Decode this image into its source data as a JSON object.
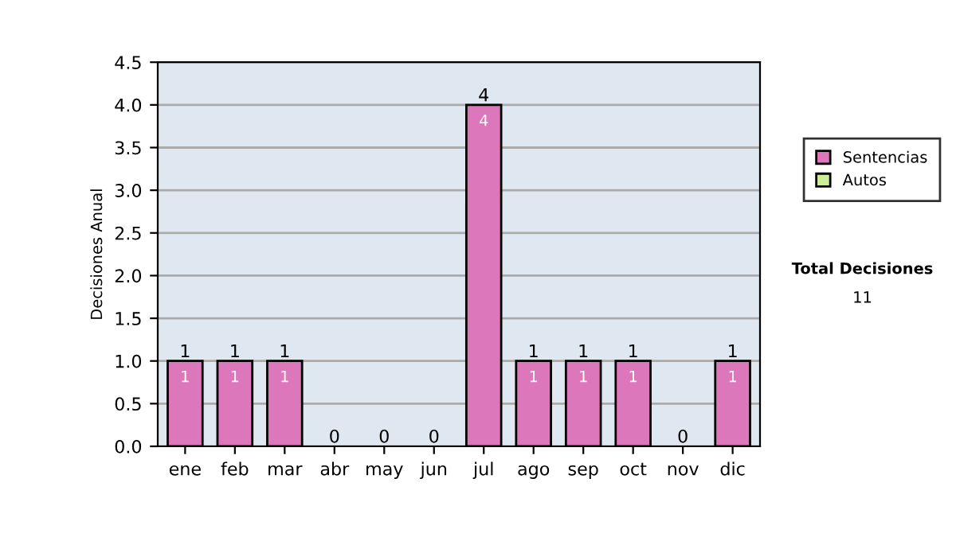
{
  "chart_data": {
    "type": "bar",
    "stacked": true,
    "ylabel": "Decisiones Anual",
    "categories": [
      "ene",
      "feb",
      "mar",
      "abr",
      "may",
      "jun",
      "jul",
      "ago",
      "sep",
      "oct",
      "nov",
      "dic"
    ],
    "series": [
      {
        "name": "Sentencias",
        "color": "#dd77bb",
        "values": [
          1,
          1,
          1,
          0,
          0,
          0,
          4,
          1,
          1,
          1,
          0,
          1
        ],
        "value_labels": [
          "1",
          "1",
          "1",
          null,
          null,
          null,
          "4",
          "1",
          "1",
          "1",
          null,
          "1"
        ]
      },
      {
        "name": "Autos",
        "color": "#ccee99",
        "values": [
          0,
          0,
          0,
          0,
          0,
          0,
          0,
          0,
          0,
          0,
          0,
          0
        ]
      }
    ],
    "totals": [
      "1",
      "1",
      "1",
      "0",
      "0",
      "0",
      "4",
      "1",
      "1",
      "1",
      "0",
      "1"
    ],
    "ylim": [
      0,
      4.5
    ],
    "yticks": [
      {
        "value": 0,
        "label": "0.0"
      },
      {
        "value": 0.5,
        "label": "0.5"
      },
      {
        "value": 1,
        "label": "1.0"
      },
      {
        "value": 1.5,
        "label": "1.5"
      },
      {
        "value": 2,
        "label": "2.0"
      },
      {
        "value": 2.5,
        "label": "2.5"
      },
      {
        "value": 3,
        "label": "3.0"
      },
      {
        "value": 3.5,
        "label": "3.5"
      },
      {
        "value": 4,
        "label": "4.0"
      },
      {
        "value": 4.5,
        "label": "4.5"
      }
    ],
    "grid": "y",
    "legend": "right",
    "annotations": [
      "Total Decisiones",
      "11"
    ]
  }
}
